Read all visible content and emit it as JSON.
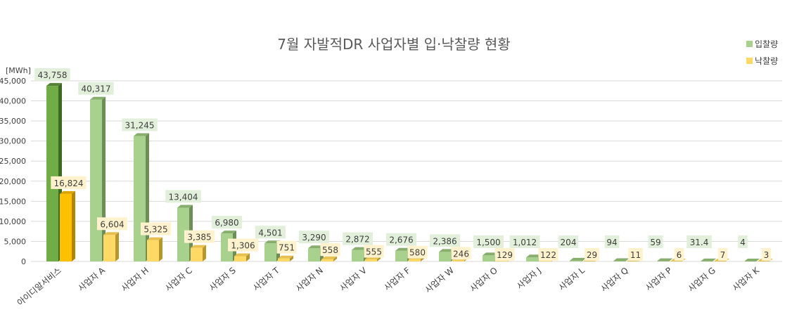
{
  "chart_data": {
    "type": "bar",
    "title": "7월 자발적DR 사업자별 입·낙찰량 현황",
    "ylabel": "[MWh]",
    "ylim": [
      0,
      45000
    ],
    "yticks": [
      "0",
      "5,000",
      "10,000",
      "15,000",
      "20,000",
      "25,000",
      "30,000",
      "35,000",
      "40,000",
      "45,000"
    ],
    "ytick_values": [
      0,
      5000,
      10000,
      15000,
      20000,
      25000,
      30000,
      35000,
      40000,
      45000
    ],
    "categories": [
      "아이디알서비스",
      "사업자 A",
      "사업자 H",
      "사업자 C",
      "사업자 S",
      "사업자 T",
      "사업자 N",
      "사업자 V",
      "사업자 F",
      "사업자 W",
      "사업자 O",
      "사업자 J",
      "사업자 L",
      "사업자 Q",
      "사업자 P",
      "사업자 G",
      "사업자 K"
    ],
    "series": [
      {
        "name": "입찰량",
        "values": [
          43758,
          40317,
          31245,
          13404,
          6980,
          4501,
          3290,
          2872,
          2676,
          2386,
          1500,
          1012,
          204,
          94,
          59,
          31.4,
          4
        ],
        "labels": [
          "43,758",
          "40,317",
          "31,245",
          "13,404",
          "6,980",
          "4,501",
          "3,290",
          "2,872",
          "2,676",
          "2,386",
          "1,500",
          "1,012",
          "204",
          "94",
          "59",
          "31.4",
          "4"
        ]
      },
      {
        "name": "낙찰량",
        "values": [
          16824,
          6604,
          5325,
          3385,
          1306,
          751,
          558,
          555,
          580,
          246,
          129,
          122,
          29,
          11,
          6,
          7,
          3
        ],
        "labels": [
          "16,824",
          "6,604",
          "5,325",
          "3,385",
          "1,306",
          "751",
          "558",
          "555",
          "580",
          "246",
          "129",
          "122",
          "29",
          "11",
          "6",
          "7",
          "3"
        ]
      }
    ],
    "legend": [
      "입찰량",
      "낙찰량"
    ],
    "legend_position": "top-right",
    "grid": true
  },
  "colors": {
    "bid_front": "#A9D18E",
    "bid_side": "#6E8E58",
    "bid_top": "#88AE6E",
    "bid_highlight_front": "#70AD47",
    "bid_highlight_side": "#3D6A22",
    "bid_highlight_top": "#548235",
    "award_front": "#FFD966",
    "award_side": "#B8962E",
    "award_top": "#E6C04F",
    "award_highlight_front": "#FFC000",
    "award_highlight_side": "#B38600",
    "award_highlight_top": "#D9A300",
    "bid_label_bg": "#E2EFDA",
    "award_label_bg": "#FFF2CC",
    "grid": "#D9D9D9"
  }
}
